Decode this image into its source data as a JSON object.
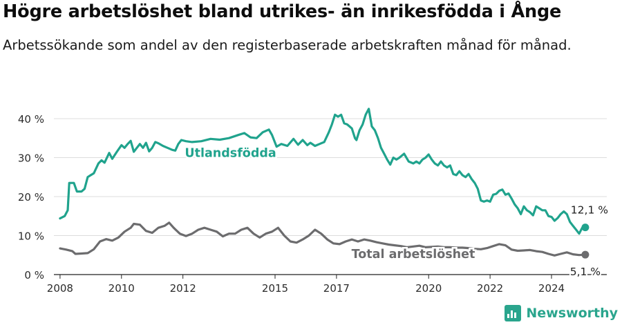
{
  "title": "Högre arbetslöshet bland utrikes- än inrikesfödda i Ånge",
  "subtitle": "Arbetssökande som andel av den registerbaserade arbetskraften månad för månad.",
  "brand": {
    "name": "Newsworthy",
    "logo_icon": "newsworthy-logo-icon"
  },
  "chart_data": {
    "type": "line",
    "xlim": [
      2007.8,
      2025.8
    ],
    "ylim": [
      0,
      43
    ],
    "ytick_values": [
      0,
      10,
      20,
      30,
      40
    ],
    "ytick_labels": [
      "0 %",
      "10 %",
      "20 %",
      "30 %",
      "40 %"
    ],
    "xtick_values": [
      2008,
      2010,
      2012,
      2015,
      2017,
      2020,
      2022,
      2024
    ],
    "xtick_labels": [
      "2008",
      "2010",
      "2012",
      "2015",
      "2017",
      "2020",
      "2022",
      "2024"
    ],
    "grid": true,
    "series": [
      {
        "name": "Utlandsfödda",
        "color": "#20a38d",
        "end_label": "12,1 %",
        "points": [
          [
            2008.0,
            14.4
          ],
          [
            2008.15,
            15.0
          ],
          [
            2008.25,
            16.5
          ],
          [
            2008.3,
            23.5
          ],
          [
            2008.45,
            23.5
          ],
          [
            2008.55,
            21.3
          ],
          [
            2008.7,
            21.3
          ],
          [
            2008.8,
            22.0
          ],
          [
            2008.9,
            25.0
          ],
          [
            2009.0,
            25.5
          ],
          [
            2009.1,
            26.0
          ],
          [
            2009.25,
            28.5
          ],
          [
            2009.35,
            29.3
          ],
          [
            2009.45,
            28.7
          ],
          [
            2009.6,
            31.2
          ],
          [
            2009.7,
            29.7
          ],
          [
            2009.85,
            31.5
          ],
          [
            2010.0,
            33.2
          ],
          [
            2010.1,
            32.5
          ],
          [
            2010.2,
            33.5
          ],
          [
            2010.3,
            34.3
          ],
          [
            2010.4,
            31.5
          ],
          [
            2010.5,
            32.5
          ],
          [
            2010.6,
            33.5
          ],
          [
            2010.7,
            32.5
          ],
          [
            2010.8,
            33.8
          ],
          [
            2010.9,
            31.6
          ],
          [
            2011.0,
            32.5
          ],
          [
            2011.1,
            34.0
          ],
          [
            2011.2,
            33.7
          ],
          [
            2011.35,
            33.0
          ],
          [
            2011.5,
            32.5
          ],
          [
            2011.65,
            32.0
          ],
          [
            2011.75,
            31.8
          ],
          [
            2011.85,
            33.5
          ],
          [
            2011.95,
            34.5
          ],
          [
            2012.1,
            34.2
          ],
          [
            2012.3,
            34.0
          ],
          [
            2012.6,
            34.2
          ],
          [
            2012.9,
            34.8
          ],
          [
            2013.2,
            34.6
          ],
          [
            2013.5,
            35.0
          ],
          [
            2013.8,
            35.8
          ],
          [
            2014.0,
            36.3
          ],
          [
            2014.2,
            35.2
          ],
          [
            2014.4,
            35.0
          ],
          [
            2014.6,
            36.5
          ],
          [
            2014.8,
            37.2
          ],
          [
            2014.9,
            35.8
          ],
          [
            2015.05,
            32.8
          ],
          [
            2015.2,
            33.5
          ],
          [
            2015.4,
            33.0
          ],
          [
            2015.6,
            34.8
          ],
          [
            2015.75,
            33.3
          ],
          [
            2015.9,
            34.5
          ],
          [
            2016.05,
            33.2
          ],
          [
            2016.15,
            33.8
          ],
          [
            2016.3,
            33.0
          ],
          [
            2016.45,
            33.5
          ],
          [
            2016.6,
            34.0
          ],
          [
            2016.75,
            36.5
          ],
          [
            2016.85,
            38.5
          ],
          [
            2016.95,
            41.0
          ],
          [
            2017.05,
            40.5
          ],
          [
            2017.15,
            41.0
          ],
          [
            2017.25,
            38.8
          ],
          [
            2017.35,
            38.5
          ],
          [
            2017.5,
            37.5
          ],
          [
            2017.6,
            35.0
          ],
          [
            2017.65,
            34.5
          ],
          [
            2017.75,
            37.0
          ],
          [
            2017.85,
            38.5
          ],
          [
            2017.95,
            41.0
          ],
          [
            2018.05,
            42.5
          ],
          [
            2018.15,
            38.0
          ],
          [
            2018.25,
            37.0
          ],
          [
            2018.35,
            35.0
          ],
          [
            2018.45,
            32.5
          ],
          [
            2018.55,
            31.0
          ],
          [
            2018.65,
            29.5
          ],
          [
            2018.75,
            28.2
          ],
          [
            2018.85,
            30.0
          ],
          [
            2018.95,
            29.5
          ],
          [
            2019.05,
            30.0
          ],
          [
            2019.2,
            31.0
          ],
          [
            2019.35,
            29.0
          ],
          [
            2019.5,
            28.5
          ],
          [
            2019.6,
            29.0
          ],
          [
            2019.7,
            28.5
          ],
          [
            2019.8,
            29.5
          ],
          [
            2019.9,
            30.0
          ],
          [
            2020.0,
            30.8
          ],
          [
            2020.1,
            29.5
          ],
          [
            2020.2,
            28.5
          ],
          [
            2020.3,
            28.0
          ],
          [
            2020.4,
            29.0
          ],
          [
            2020.5,
            28.0
          ],
          [
            2020.6,
            27.5
          ],
          [
            2020.7,
            28.0
          ],
          [
            2020.8,
            25.8
          ],
          [
            2020.9,
            25.5
          ],
          [
            2021.0,
            26.5
          ],
          [
            2021.1,
            25.5
          ],
          [
            2021.2,
            25.0
          ],
          [
            2021.3,
            25.8
          ],
          [
            2021.4,
            24.5
          ],
          [
            2021.5,
            23.5
          ],
          [
            2021.6,
            22.0
          ],
          [
            2021.7,
            19.0
          ],
          [
            2021.8,
            18.7
          ],
          [
            2021.9,
            19.0
          ],
          [
            2022.0,
            18.7
          ],
          [
            2022.1,
            20.5
          ],
          [
            2022.2,
            20.7
          ],
          [
            2022.3,
            21.5
          ],
          [
            2022.4,
            21.8
          ],
          [
            2022.5,
            20.5
          ],
          [
            2022.6,
            20.8
          ],
          [
            2022.7,
            19.5
          ],
          [
            2022.8,
            18.0
          ],
          [
            2022.9,
            17.0
          ],
          [
            2023.0,
            15.5
          ],
          [
            2023.1,
            17.5
          ],
          [
            2023.2,
            16.5
          ],
          [
            2023.3,
            16.0
          ],
          [
            2023.4,
            15.2
          ],
          [
            2023.5,
            17.5
          ],
          [
            2023.6,
            17.0
          ],
          [
            2023.7,
            16.5
          ],
          [
            2023.8,
            16.5
          ],
          [
            2023.9,
            15.0
          ],
          [
            2024.0,
            14.8
          ],
          [
            2024.1,
            13.8
          ],
          [
            2024.2,
            14.5
          ],
          [
            2024.3,
            15.5
          ],
          [
            2024.4,
            16.2
          ],
          [
            2024.5,
            15.5
          ],
          [
            2024.6,
            13.5
          ],
          [
            2024.7,
            12.5
          ],
          [
            2024.8,
            11.5
          ],
          [
            2024.9,
            10.5
          ],
          [
            2025.0,
            12.0
          ],
          [
            2025.1,
            12.1
          ]
        ]
      },
      {
        "name": "Total arbetslöshet",
        "color": "#6c6c6e",
        "end_label": "5,1 %",
        "points": [
          [
            2008.0,
            6.7
          ],
          [
            2008.2,
            6.4
          ],
          [
            2008.4,
            6.0
          ],
          [
            2008.5,
            5.3
          ],
          [
            2008.7,
            5.4
          ],
          [
            2008.9,
            5.5
          ],
          [
            2009.1,
            6.5
          ],
          [
            2009.3,
            8.5
          ],
          [
            2009.5,
            9.1
          ],
          [
            2009.7,
            8.7
          ],
          [
            2009.9,
            9.5
          ],
          [
            2010.1,
            11.0
          ],
          [
            2010.3,
            12.0
          ],
          [
            2010.4,
            13.0
          ],
          [
            2010.6,
            12.8
          ],
          [
            2010.8,
            11.2
          ],
          [
            2011.0,
            10.7
          ],
          [
            2011.2,
            12.0
          ],
          [
            2011.4,
            12.5
          ],
          [
            2011.55,
            13.3
          ],
          [
            2011.7,
            12.0
          ],
          [
            2011.9,
            10.5
          ],
          [
            2012.1,
            9.9
          ],
          [
            2012.3,
            10.5
          ],
          [
            2012.5,
            11.5
          ],
          [
            2012.7,
            12.0
          ],
          [
            2012.9,
            11.5
          ],
          [
            2013.1,
            11.0
          ],
          [
            2013.3,
            9.8
          ],
          [
            2013.5,
            10.5
          ],
          [
            2013.7,
            10.5
          ],
          [
            2013.9,
            11.5
          ],
          [
            2014.1,
            12.0
          ],
          [
            2014.3,
            10.5
          ],
          [
            2014.5,
            9.5
          ],
          [
            2014.7,
            10.5
          ],
          [
            2014.9,
            11.0
          ],
          [
            2015.1,
            12.0
          ],
          [
            2015.3,
            10.0
          ],
          [
            2015.5,
            8.5
          ],
          [
            2015.7,
            8.2
          ],
          [
            2015.9,
            9.0
          ],
          [
            2016.1,
            10.0
          ],
          [
            2016.3,
            11.5
          ],
          [
            2016.5,
            10.5
          ],
          [
            2016.7,
            9.0
          ],
          [
            2016.9,
            8.0
          ],
          [
            2017.1,
            7.8
          ],
          [
            2017.3,
            8.5
          ],
          [
            2017.5,
            9.0
          ],
          [
            2017.7,
            8.5
          ],
          [
            2017.9,
            9.0
          ],
          [
            2018.1,
            8.7
          ],
          [
            2018.3,
            8.3
          ],
          [
            2018.5,
            8.0
          ],
          [
            2018.7,
            7.7
          ],
          [
            2018.9,
            7.5
          ],
          [
            2019.1,
            7.3
          ],
          [
            2019.3,
            7.0
          ],
          [
            2019.5,
            7.2
          ],
          [
            2019.7,
            7.4
          ],
          [
            2019.9,
            7.0
          ],
          [
            2020.1,
            7.1
          ],
          [
            2020.3,
            7.2
          ],
          [
            2020.5,
            7.0
          ],
          [
            2020.7,
            7.0
          ],
          [
            2020.9,
            6.9
          ],
          [
            2021.1,
            6.9
          ],
          [
            2021.3,
            6.8
          ],
          [
            2021.5,
            6.6
          ],
          [
            2021.7,
            6.5
          ],
          [
            2021.9,
            6.8
          ],
          [
            2022.1,
            7.3
          ],
          [
            2022.3,
            7.8
          ],
          [
            2022.5,
            7.5
          ],
          [
            2022.7,
            6.4
          ],
          [
            2022.9,
            6.1
          ],
          [
            2023.1,
            6.2
          ],
          [
            2023.3,
            6.3
          ],
          [
            2023.5,
            6.0
          ],
          [
            2023.7,
            5.8
          ],
          [
            2023.9,
            5.3
          ],
          [
            2024.1,
            4.9
          ],
          [
            2024.3,
            5.3
          ],
          [
            2024.5,
            5.7
          ],
          [
            2024.7,
            5.2
          ],
          [
            2024.9,
            5.0
          ],
          [
            2025.1,
            5.1
          ]
        ]
      }
    ]
  }
}
